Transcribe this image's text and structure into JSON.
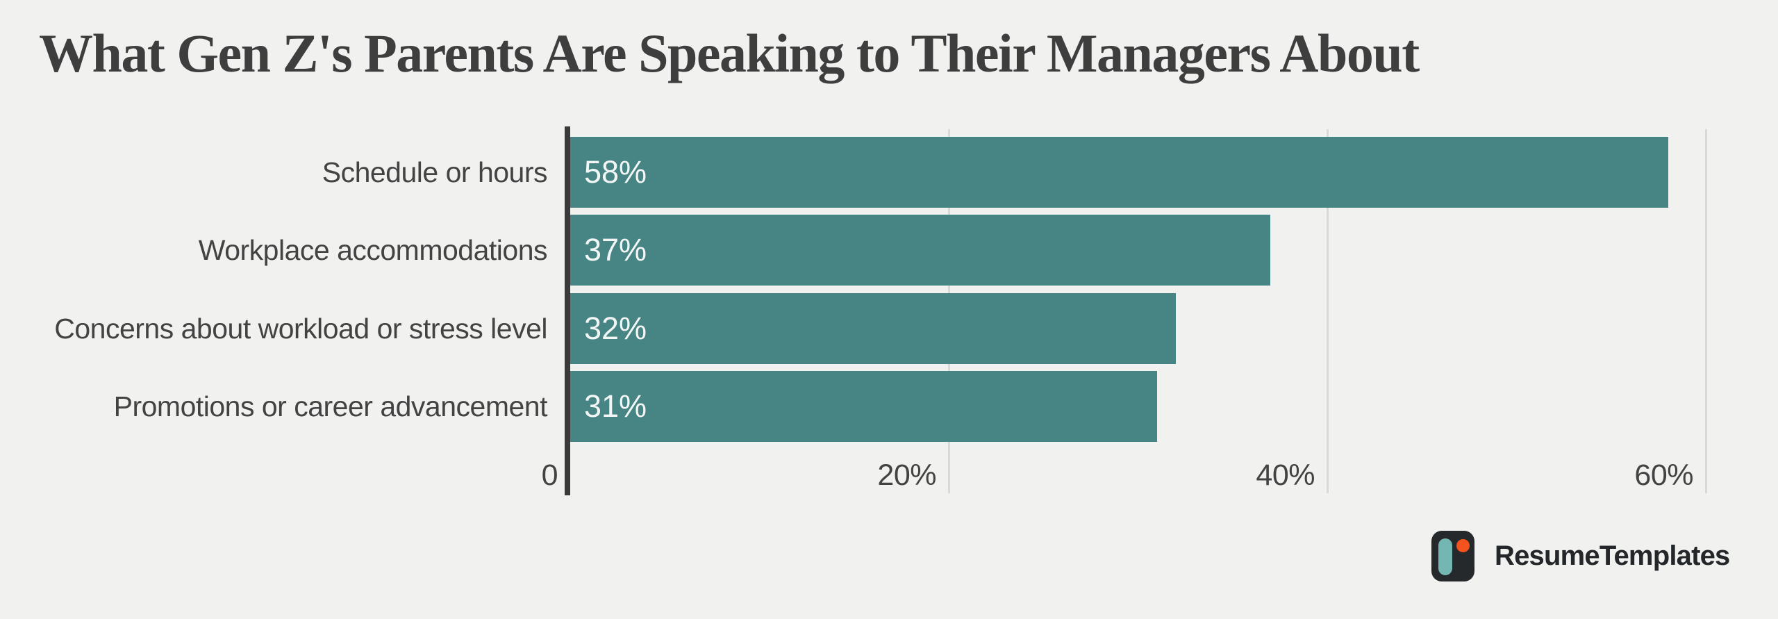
{
  "title": "What Gen Z's Parents Are Speaking to Their Managers About",
  "chart_data": {
    "type": "bar",
    "orientation": "horizontal",
    "title": "What Gen Z's Parents Are Speaking to Their Managers About",
    "categories": [
      "Schedule or hours",
      "Workplace accommodations",
      "Concerns about workload or stress level",
      "Promotions or career advancement"
    ],
    "values": [
      58,
      37,
      32,
      31
    ],
    "value_labels": [
      "58%",
      "37%",
      "32%",
      "31%"
    ],
    "xlabel": "",
    "ylabel": "",
    "xlim": [
      0,
      60
    ],
    "xticks": [
      {
        "value": 0,
        "label": "0"
      },
      {
        "value": 20,
        "label": "20%"
      },
      {
        "value": 40,
        "label": "40%"
      },
      {
        "value": 60,
        "label": "60%"
      }
    ],
    "grid": true,
    "legend": false,
    "colors": {
      "background": "#f1f1f0",
      "bar": "#478584",
      "axis": "#3a3a3a",
      "grid": "#d9d9d7",
      "label_text": "#434343",
      "tick_text": "#434343",
      "value_text": "#f2f6f5"
    }
  },
  "branding": {
    "logo_text": "ResumeTemplates",
    "icon_colors": {
      "box": "#26292b",
      "pill": "#74b7b2",
      "dot": "#f4521e"
    }
  }
}
